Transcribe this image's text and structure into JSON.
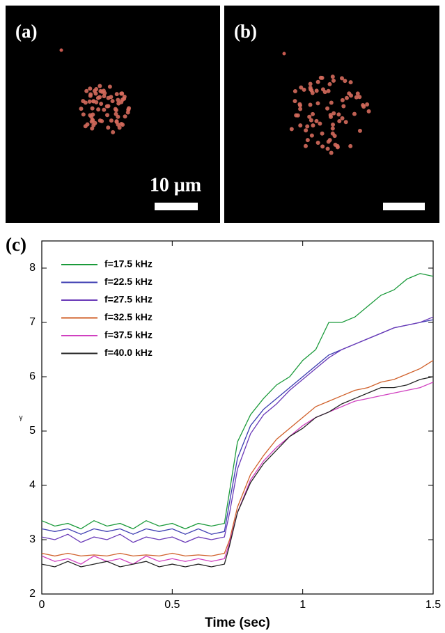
{
  "panels": [
    {
      "label": "(a)",
      "scale_bar_label": "10 μm"
    },
    {
      "label": "(b)"
    }
  ],
  "chart_data": {
    "type": "line",
    "panel_label": "(c)",
    "x_label": "Time (sec)",
    "y_label": "γ",
    "x": [
      0,
      0.05,
      0.1,
      0.15,
      0.2,
      0.25,
      0.3,
      0.35,
      0.4,
      0.45,
      0.5,
      0.55,
      0.6,
      0.65,
      0.7,
      0.72,
      0.75,
      0.8,
      0.85,
      0.9,
      0.95,
      1.0,
      1.05,
      1.1,
      1.15,
      1.2,
      1.25,
      1.3,
      1.35,
      1.4,
      1.45,
      1.5
    ],
    "series": [
      {
        "name": "f=17.5 kHz",
        "color": "#1a9a3a",
        "values": [
          3.35,
          3.25,
          3.3,
          3.2,
          3.35,
          3.25,
          3.3,
          3.2,
          3.35,
          3.25,
          3.3,
          3.2,
          3.3,
          3.25,
          3.3,
          3.9,
          4.8,
          5.3,
          5.6,
          5.85,
          6.0,
          6.3,
          6.5,
          7.0,
          7.0,
          7.1,
          7.3,
          7.5,
          7.6,
          7.8,
          7.9,
          7.85
        ]
      },
      {
        "name": "f=22.5 kHz",
        "color": "#3a3ab0",
        "values": [
          3.2,
          3.15,
          3.2,
          3.1,
          3.2,
          3.15,
          3.2,
          3.1,
          3.2,
          3.15,
          3.2,
          3.1,
          3.2,
          3.1,
          3.15,
          3.7,
          4.5,
          5.1,
          5.4,
          5.6,
          5.8,
          6.0,
          6.2,
          6.4,
          6.5,
          6.6,
          6.7,
          6.8,
          6.9,
          6.95,
          7.0,
          7.05
        ]
      },
      {
        "name": "f=27.5 kHz",
        "color": "#6a3ab8",
        "values": [
          3.05,
          3.0,
          3.1,
          2.95,
          3.05,
          3.0,
          3.1,
          2.95,
          3.05,
          3.0,
          3.05,
          2.95,
          3.05,
          3.0,
          3.05,
          3.5,
          4.3,
          4.95,
          5.3,
          5.5,
          5.75,
          5.95,
          6.15,
          6.35,
          6.5,
          6.6,
          6.7,
          6.8,
          6.9,
          6.95,
          7.0,
          7.1
        ]
      },
      {
        "name": "f=32.5 kHz",
        "color": "#d0602a",
        "values": [
          2.75,
          2.7,
          2.75,
          2.7,
          2.72,
          2.7,
          2.75,
          2.7,
          2.72,
          2.7,
          2.75,
          2.7,
          2.72,
          2.7,
          2.75,
          3.0,
          3.6,
          4.2,
          4.55,
          4.85,
          5.05,
          5.25,
          5.45,
          5.55,
          5.65,
          5.75,
          5.8,
          5.9,
          5.95,
          6.05,
          6.15,
          6.3
        ]
      },
      {
        "name": "f=37.5 kHz",
        "color": "#d040c0",
        "values": [
          2.7,
          2.6,
          2.65,
          2.55,
          2.7,
          2.6,
          2.65,
          2.55,
          2.7,
          2.6,
          2.65,
          2.6,
          2.65,
          2.6,
          2.65,
          2.95,
          3.5,
          4.1,
          4.45,
          4.7,
          4.9,
          5.1,
          5.25,
          5.35,
          5.45,
          5.55,
          5.6,
          5.65,
          5.7,
          5.75,
          5.8,
          5.9
        ]
      },
      {
        "name": "f=40.0 kHz",
        "color": "#222222",
        "values": [
          2.55,
          2.5,
          2.6,
          2.5,
          2.55,
          2.6,
          2.5,
          2.55,
          2.6,
          2.5,
          2.55,
          2.5,
          2.55,
          2.5,
          2.55,
          2.9,
          3.5,
          4.05,
          4.4,
          4.65,
          4.9,
          5.05,
          5.25,
          5.35,
          5.5,
          5.6,
          5.7,
          5.8,
          5.8,
          5.85,
          5.95,
          6.0
        ]
      }
    ],
    "xlim": [
      0,
      1.5
    ],
    "ylim": [
      2,
      8.5
    ],
    "xticks": [
      0,
      0.5,
      1,
      1.5
    ],
    "yticks": [
      2,
      3,
      4,
      5,
      6,
      7,
      8
    ]
  }
}
